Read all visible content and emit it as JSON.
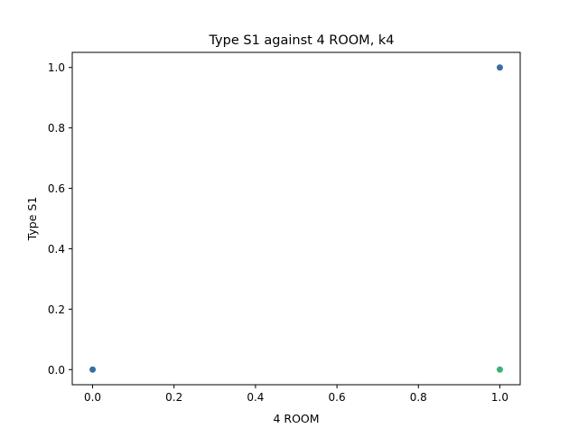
{
  "chart_data": {
    "type": "scatter",
    "title": "Type S1 against 4 ROOM, k4",
    "xlabel": "4 ROOM",
    "ylabel": "Type S1",
    "xlim": [
      -0.05,
      1.05
    ],
    "ylim": [
      -0.05,
      1.05
    ],
    "xticks": [
      0.0,
      0.2,
      0.4,
      0.6,
      0.8,
      1.0
    ],
    "yticks": [
      0.0,
      0.2,
      0.4,
      0.6,
      0.8,
      1.0
    ],
    "xtick_labels": [
      "0.0",
      "0.2",
      "0.4",
      "0.6",
      "0.8",
      "1.0"
    ],
    "ytick_labels": [
      "0.0",
      "0.2",
      "0.4",
      "0.6",
      "0.8",
      "1.0"
    ],
    "grid": false,
    "legend": "none",
    "points": [
      {
        "x": 0.0,
        "y": 0.0,
        "color": "#3b6e9e"
      },
      {
        "x": 1.0,
        "y": 1.0,
        "color": "#3b6e9e"
      },
      {
        "x": 1.0,
        "y": 0.0,
        "color": "#3fb07a"
      }
    ]
  }
}
